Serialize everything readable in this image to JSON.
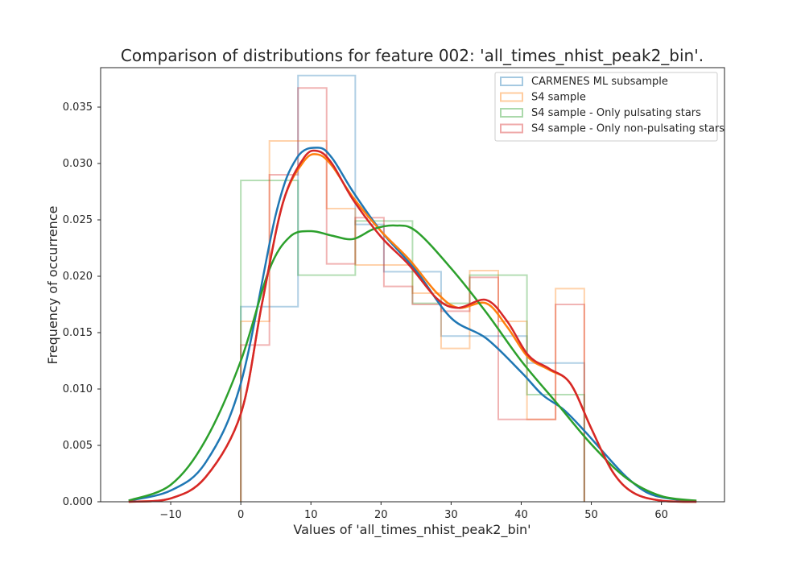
{
  "chart_data": {
    "type": "histogram+kde",
    "title": "Comparison of distributions for feature 002: 'all_times_nhist_peak2_bin'.",
    "xlabel": "Values of 'all_times_nhist_peak2_bin'",
    "ylabel": "Frequency of occurrence",
    "xlim": [
      -20,
      69
    ],
    "ylim": [
      0,
      0.0385
    ],
    "x_ticks": [
      -10,
      0,
      10,
      20,
      30,
      40,
      50,
      60
    ],
    "y_ticks": [
      0.0,
      0.005,
      0.01,
      0.015,
      0.02,
      0.025,
      0.03,
      0.035
    ],
    "x_tick_labels": [
      "−10",
      "0",
      "10",
      "20",
      "30",
      "40",
      "50",
      "60"
    ],
    "y_tick_labels": [
      "0.000",
      "0.005",
      "0.010",
      "0.015",
      "0.020",
      "0.025",
      "0.030",
      "0.035"
    ],
    "grid": false,
    "legend_position": "top-right",
    "series": [
      {
        "name": "CARMENES ML subsample",
        "color": "#1f77b4",
        "hist_edges": [
          0,
          4.08,
          8.16,
          12.24,
          16.33,
          20.41,
          24.49,
          28.57,
          32.65,
          36.73,
          40.82,
          44.9,
          49
        ],
        "hist_values": [
          0.0173,
          0.0173,
          0.0378,
          0.0378,
          0.0246,
          0.0204,
          0.0204,
          0.0147,
          0.0147,
          0.0147,
          0.0123,
          0.0123
        ],
        "kde_x": [
          -16,
          -10,
          -5,
          0,
          5,
          8,
          11,
          13,
          16,
          20,
          25,
          30,
          35,
          40,
          43,
          46,
          49,
          52,
          55,
          58,
          61,
          65
        ],
        "kde_y": [
          0.0001,
          0.001,
          0.0035,
          0.0105,
          0.0255,
          0.0305,
          0.0314,
          0.0305,
          0.0275,
          0.024,
          0.0205,
          0.0163,
          0.0145,
          0.0115,
          0.0095,
          0.0082,
          0.0063,
          0.0042,
          0.0022,
          0.0008,
          0.0003,
          0.0
        ]
      },
      {
        "name": "S4 sample",
        "color": "#ff7f0e",
        "hist_edges": [
          0,
          4.08,
          8.16,
          12.24,
          16.33,
          20.41,
          24.49,
          28.57,
          32.65,
          36.73,
          40.82,
          44.9,
          49
        ],
        "hist_values": [
          0.016,
          0.032,
          0.032,
          0.026,
          0.021,
          0.021,
          0.0185,
          0.0136,
          0.0205,
          0.016,
          0.0073,
          0.0189
        ],
        "kde_x": [
          -16,
          -10,
          -5,
          0,
          3,
          6,
          9,
          11,
          13,
          16,
          20,
          24,
          28,
          31,
          35,
          38,
          41,
          44,
          47,
          50,
          53,
          56,
          60,
          65
        ],
        "kde_y": [
          0.0,
          0.0003,
          0.0022,
          0.0078,
          0.0175,
          0.0265,
          0.0302,
          0.0308,
          0.0298,
          0.027,
          0.024,
          0.0215,
          0.0185,
          0.0172,
          0.0176,
          0.0155,
          0.0128,
          0.0117,
          0.0105,
          0.0065,
          0.0027,
          0.0008,
          0.0001,
          0.0
        ]
      },
      {
        "name": "S4 sample - Only pulsating stars",
        "color": "#2ca02c",
        "hist_edges": [
          0,
          8.16,
          16.33,
          24.49,
          32.65,
          40.82,
          49
        ],
        "hist_values": [
          0.0285,
          0.0201,
          0.0249,
          0.0176,
          0.0201,
          0.0095
        ],
        "kde_x": [
          -16,
          -10,
          -5,
          0,
          4,
          7,
          10,
          13,
          16,
          19,
          22,
          25,
          30,
          35,
          40,
          45,
          50,
          55,
          60,
          65
        ],
        "kde_y": [
          0.0001,
          0.0015,
          0.0055,
          0.0125,
          0.0205,
          0.0235,
          0.024,
          0.0236,
          0.0233,
          0.0242,
          0.0245,
          0.024,
          0.0207,
          0.0168,
          0.0125,
          0.0088,
          0.0051,
          0.0021,
          0.0005,
          0.0001
        ]
      },
      {
        "name": "S4 sample - Only non-pulsating stars",
        "color": "#d62728",
        "hist_edges": [
          0,
          4.08,
          8.16,
          12.24,
          16.33,
          20.41,
          24.49,
          28.57,
          32.65,
          36.73,
          40.82,
          44.9,
          49
        ],
        "hist_values": [
          0.0139,
          0.029,
          0.0367,
          0.0211,
          0.0252,
          0.0191,
          0.0175,
          0.0169,
          0.0199,
          0.0073,
          0.0073,
          0.0175
        ],
        "kde_x": [
          -16,
          -10,
          -5,
          0,
          3,
          6,
          9,
          11,
          13,
          16,
          20,
          24,
          28,
          31,
          35,
          38,
          41,
          44,
          47,
          50,
          53,
          56,
          60,
          65
        ],
        "kde_y": [
          0.0,
          0.0003,
          0.0022,
          0.0078,
          0.0175,
          0.0265,
          0.0305,
          0.0311,
          0.03,
          0.0268,
          0.0235,
          0.021,
          0.018,
          0.0172,
          0.0179,
          0.016,
          0.013,
          0.0118,
          0.0105,
          0.0065,
          0.0027,
          0.0008,
          0.0001,
          0.0
        ]
      }
    ]
  }
}
